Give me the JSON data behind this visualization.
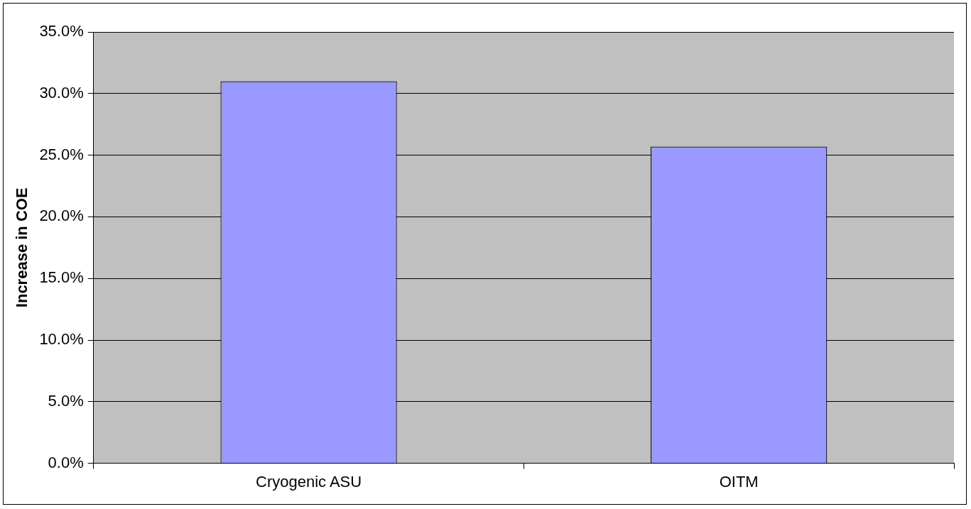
{
  "chart_data": {
    "type": "bar",
    "ylabel": "Increase in COE",
    "categories": [
      "Cryogenic ASU",
      "OITM"
    ],
    "values": [
      31.0,
      25.7
    ],
    "color": "#9999ff",
    "ylim": [
      0,
      35
    ],
    "yticks": [
      {
        "value": 0,
        "label": "0.0%"
      },
      {
        "value": 5,
        "label": "5.0%"
      },
      {
        "value": 10,
        "label": "10.0%"
      },
      {
        "value": 15,
        "label": "15.0%"
      },
      {
        "value": 20,
        "label": "20.0%"
      },
      {
        "value": 25,
        "label": "25.0%"
      },
      {
        "value": 30,
        "label": "30.0%"
      },
      {
        "value": 35,
        "label": "35.0%"
      }
    ],
    "grid": "y",
    "legend": false
  }
}
